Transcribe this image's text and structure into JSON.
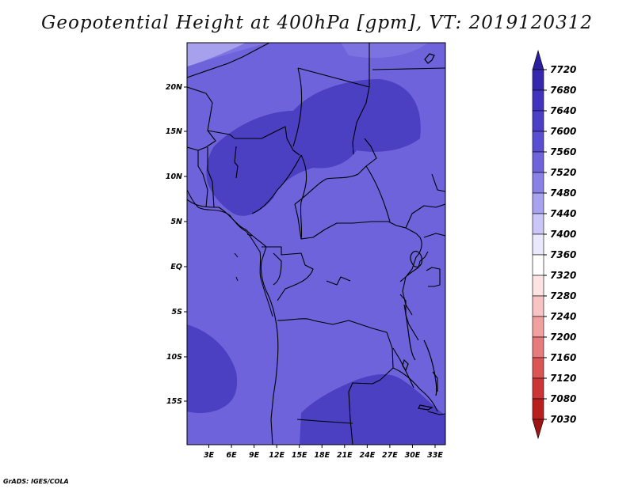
{
  "title": "Geopotential Height at 400hPa [gpm], VT: 2019120312",
  "credit": "GrADS: IGES/COLA",
  "map": {
    "lon_ticks": [
      "3E",
      "6E",
      "9E",
      "12E",
      "15E",
      "18E",
      "21E",
      "24E",
      "27E",
      "30E",
      "33E"
    ],
    "lat_ticks": [
      "20N",
      "15N",
      "10N",
      "5N",
      "EQ",
      "5S",
      "10S",
      "15S"
    ],
    "region": {
      "lon_range": [
        0.5,
        35.3
      ],
      "lat_range": [
        -19.8,
        24.5
      ]
    },
    "colors": {
      "background_field": "#6e63db",
      "high_core": "#4b3fc2",
      "lower_band": "#8a81e6",
      "light_corner": "#d3d0f6",
      "borders": "#000000"
    }
  },
  "colorbar": {
    "levels": [
      "7720",
      "7680",
      "7640",
      "7600",
      "7560",
      "7520",
      "7480",
      "7440",
      "7400",
      "7360",
      "7320",
      "7280",
      "7240",
      "7200",
      "7160",
      "7120",
      "7080",
      "7030"
    ],
    "colors": [
      "#2c1ea0",
      "#3628ae",
      "#4133bd",
      "#4b3fc8",
      "#594ed2",
      "#6e63db",
      "#8a81e6",
      "#a8a2ef",
      "#cac6f7",
      "#e9e8fc",
      "#ffffff",
      "#fde3e3",
      "#f8c3c3",
      "#f1a0a0",
      "#e77a7a",
      "#dc5555",
      "#cc3535",
      "#b81f1f",
      "#a01414"
    ]
  }
}
